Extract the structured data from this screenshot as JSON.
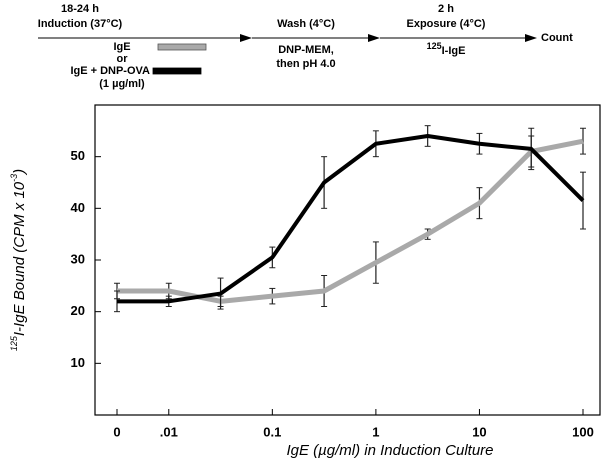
{
  "protocol": {
    "step1_time": "18-24 h",
    "step1": "Induction (37°C)",
    "or": "or",
    "dose": "(1 µg/ml)",
    "step2": "Wash (4°C)",
    "step2_line1": "DNP-MEM,",
    "step2_line2": "then pH 4.0",
    "step3_time": "2 h",
    "step3": "Exposure (4°C)",
    "step3_iso": "125",
    "step3_agent": "I-IgE",
    "step4": "Count"
  },
  "chart_data": {
    "type": "line",
    "x_label": "IgE (µg/ml) in Induction Culture",
    "y_label": [
      "125",
      "I-IgE Bound (CPM x 10",
      "-3",
      ")"
    ],
    "categories": [
      "0",
      ".01",
      null,
      "0.1",
      null,
      "1",
      null,
      "10",
      null,
      "100"
    ],
    "ylim": [
      0,
      60
    ],
    "yticks": [
      10,
      20,
      30,
      40,
      50
    ],
    "series": [
      {
        "name": "IgE",
        "color": "#a9a9a9",
        "values": [
          24,
          24,
          22,
          23,
          24,
          29.5,
          35,
          41,
          51,
          53
        ],
        "errors": [
          1.5,
          1.5,
          1,
          1.5,
          3,
          4,
          1,
          3,
          3,
          2.5
        ]
      },
      {
        "name": "IgE + DNP-OVA",
        "color": "#000000",
        "values": [
          22,
          22,
          23.5,
          30.5,
          45,
          52.5,
          54,
          52.5,
          51.5,
          41.5
        ],
        "errors": [
          2,
          1,
          3,
          2,
          5,
          2.5,
          2,
          2,
          4,
          5.5
        ]
      }
    ]
  }
}
